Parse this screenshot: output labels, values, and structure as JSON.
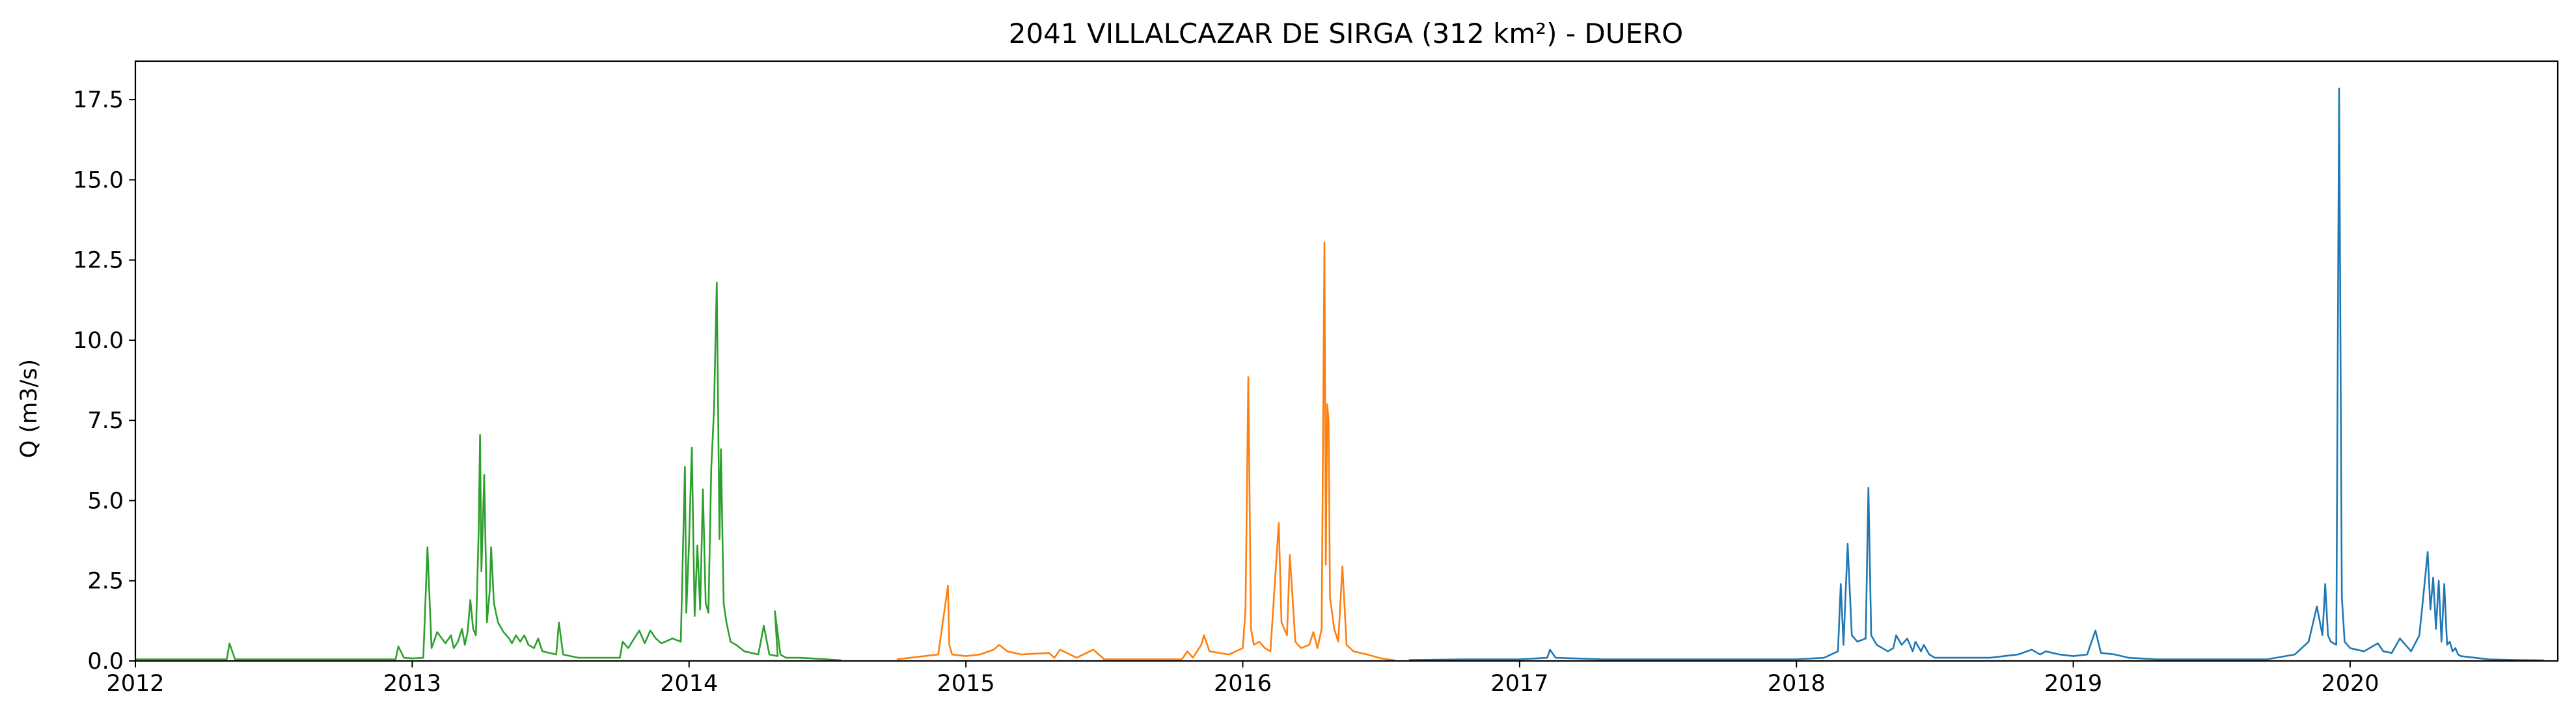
{
  "chart_data": {
    "type": "line",
    "title": "2041 VILLALCAZAR DE SIRGA (312 km²) - DUERO",
    "xlabel": "",
    "ylabel": "Q (m3/s)",
    "xlim": [
      2012.0,
      2020.75
    ],
    "ylim": [
      0.0,
      18.7
    ],
    "x_ticks": [
      2012,
      2013,
      2014,
      2015,
      2016,
      2017,
      2018,
      2019,
      2020
    ],
    "x_tick_labels": [
      "2012",
      "2013",
      "2014",
      "2015",
      "2016",
      "2017",
      "2018",
      "2019",
      "2020"
    ],
    "y_ticks": [
      0.0,
      2.5,
      5.0,
      7.5,
      10.0,
      12.5,
      15.0,
      17.5
    ],
    "y_tick_labels": [
      "0.0",
      "2.5",
      "5.0",
      "7.5",
      "10.0",
      "12.5",
      "15.0",
      "17.5"
    ],
    "grid": false,
    "legend": "none",
    "series": [
      {
        "color": "#2ca02c",
        "x": [
          2012.0,
          2012.2,
          2012.3,
          2012.33,
          2012.34,
          2012.36,
          2012.45,
          2012.6,
          2012.8,
          2012.94,
          2012.95,
          2012.97,
          2013.0,
          2013.04,
          2013.055,
          2013.07,
          2013.09,
          2013.12,
          2013.14,
          2013.15,
          2013.165,
          2013.18,
          2013.19,
          2013.2,
          2013.21,
          2013.22,
          2013.23,
          2013.24,
          2013.245,
          2013.25,
          2013.26,
          2013.27,
          2013.28,
          2013.285,
          2013.295,
          2013.31,
          2013.33,
          2013.35,
          2013.36,
          2013.375,
          2013.39,
          2013.405,
          2013.42,
          2013.44,
          2013.455,
          2013.47,
          2013.52,
          2013.53,
          2013.545,
          2013.6,
          2013.7,
          2013.75,
          2013.76,
          2013.78,
          2013.82,
          2013.84,
          2013.86,
          2013.88,
          2013.9,
          2013.94,
          2013.97,
          2013.985,
          2013.99,
          2014.0,
          2014.01,
          2014.02,
          2014.03,
          2014.04,
          2014.05,
          2014.06,
          2014.07,
          2014.08,
          2014.09,
          2014.1,
          2014.11,
          2014.115,
          2014.125,
          2014.135,
          2014.145,
          2014.15,
          2014.17,
          2014.2,
          2014.25,
          2014.27,
          2014.29,
          2014.32,
          2014.31,
          2014.33,
          2014.35,
          2014.4,
          2014.5,
          2014.55
        ],
        "y": [
          0.05,
          0.05,
          0.05,
          0.05,
          0.55,
          0.05,
          0.05,
          0.05,
          0.05,
          0.05,
          0.45,
          0.1,
          0.08,
          0.1,
          3.55,
          0.4,
          0.9,
          0.55,
          0.8,
          0.4,
          0.6,
          1.0,
          0.5,
          0.9,
          1.9,
          1.0,
          0.8,
          4.1,
          7.05,
          2.8,
          5.8,
          1.2,
          2.2,
          3.55,
          1.8,
          1.2,
          0.9,
          0.7,
          0.55,
          0.8,
          0.6,
          0.8,
          0.5,
          0.4,
          0.7,
          0.3,
          0.2,
          1.2,
          0.2,
          0.1,
          0.1,
          0.1,
          0.6,
          0.4,
          0.95,
          0.55,
          0.95,
          0.7,
          0.55,
          0.7,
          0.6,
          6.05,
          1.5,
          3.7,
          6.65,
          1.4,
          3.6,
          1.6,
          5.35,
          1.8,
          1.5,
          6.0,
          7.8,
          11.8,
          3.8,
          6.6,
          1.8,
          1.2,
          0.8,
          0.6,
          0.5,
          0.3,
          0.2,
          1.1,
          0.2,
          0.15,
          1.55,
          0.2,
          0.1,
          0.1,
          0.05,
          0.02
        ]
      },
      {
        "color": "#ff7f0e",
        "x": [
          2014.75,
          2014.8,
          2014.9,
          2014.935,
          2014.94,
          2014.95,
          2015.0,
          2015.05,
          2015.1,
          2015.12,
          2015.15,
          2015.2,
          2015.3,
          2015.32,
          2015.34,
          2015.4,
          2015.46,
          2015.5,
          2015.6,
          2015.7,
          2015.78,
          2015.8,
          2015.82,
          2015.85,
          2015.86,
          2015.88,
          2015.95,
          2016.0,
          2016.01,
          2016.02,
          2016.03,
          2016.04,
          2016.06,
          2016.08,
          2016.1,
          2016.13,
          2016.14,
          2016.16,
          2016.17,
          2016.19,
          2016.21,
          2016.24,
          2016.255,
          2016.27,
          2016.285,
          2016.295,
          2016.3,
          2016.305,
          2016.31,
          2016.315,
          2016.33,
          2016.345,
          2016.36,
          2016.375,
          2016.4,
          2016.45,
          2016.5,
          2016.55
        ],
        "y": [
          0.05,
          0.1,
          0.2,
          2.35,
          0.5,
          0.2,
          0.15,
          0.2,
          0.35,
          0.5,
          0.3,
          0.2,
          0.25,
          0.1,
          0.35,
          0.1,
          0.35,
          0.05,
          0.05,
          0.05,
          0.05,
          0.3,
          0.1,
          0.5,
          0.8,
          0.3,
          0.2,
          0.4,
          1.6,
          8.85,
          1.0,
          0.5,
          0.6,
          0.4,
          0.3,
          4.3,
          1.2,
          0.8,
          3.3,
          0.6,
          0.4,
          0.5,
          0.9,
          0.4,
          1.0,
          13.05,
          3.0,
          8.0,
          7.5,
          2.0,
          1.0,
          0.6,
          2.95,
          0.5,
          0.3,
          0.2,
          0.08,
          0.02
        ]
      },
      {
        "color": "#1f77b4",
        "x": [
          2016.6,
          2016.8,
          2017.0,
          2017.1,
          2017.11,
          2017.13,
          2017.3,
          2017.6,
          2017.9,
          2018.0,
          2018.1,
          2018.15,
          2018.16,
          2018.17,
          2018.185,
          2018.2,
          2018.22,
          2018.25,
          2018.26,
          2018.27,
          2018.29,
          2018.31,
          2018.33,
          2018.35,
          2018.36,
          2018.38,
          2018.4,
          2018.42,
          2018.43,
          2018.45,
          2018.46,
          2018.48,
          2018.5,
          2018.6,
          2018.7,
          2018.8,
          2018.85,
          2018.88,
          2018.9,
          2018.95,
          2019.0,
          2019.05,
          2019.08,
          2019.1,
          2019.15,
          2019.2,
          2019.3,
          2019.5,
          2019.7,
          2019.8,
          2019.85,
          2019.88,
          2019.9,
          2019.91,
          2019.92,
          2019.93,
          2019.95,
          2019.96,
          2019.97,
          2019.98,
          2020.0,
          2020.05,
          2020.1,
          2020.12,
          2020.15,
          2020.18,
          2020.22,
          2020.25,
          2020.27,
          2020.28,
          2020.29,
          2020.3,
          2020.31,
          2020.32,
          2020.33,
          2020.34,
          2020.35,
          2020.36,
          2020.37,
          2020.38,
          2020.39,
          2020.4,
          2020.45,
          2020.5,
          2020.6,
          2020.7
        ],
        "y": [
          0.03,
          0.05,
          0.05,
          0.1,
          0.35,
          0.1,
          0.05,
          0.05,
          0.05,
          0.05,
          0.1,
          0.3,
          2.4,
          0.5,
          3.65,
          0.8,
          0.6,
          0.7,
          5.4,
          0.8,
          0.5,
          0.4,
          0.3,
          0.4,
          0.8,
          0.5,
          0.7,
          0.3,
          0.6,
          0.3,
          0.5,
          0.2,
          0.1,
          0.1,
          0.1,
          0.2,
          0.35,
          0.2,
          0.3,
          0.2,
          0.15,
          0.2,
          0.95,
          0.25,
          0.2,
          0.1,
          0.05,
          0.05,
          0.05,
          0.2,
          0.6,
          1.7,
          0.8,
          2.4,
          0.8,
          0.6,
          0.5,
          17.85,
          2.0,
          0.6,
          0.4,
          0.3,
          0.55,
          0.3,
          0.25,
          0.7,
          0.3,
          0.8,
          2.5,
          3.4,
          1.6,
          2.6,
          1.0,
          2.5,
          0.6,
          2.4,
          0.5,
          0.6,
          0.3,
          0.4,
          0.2,
          0.15,
          0.1,
          0.05,
          0.03,
          0.02
        ]
      }
    ]
  }
}
